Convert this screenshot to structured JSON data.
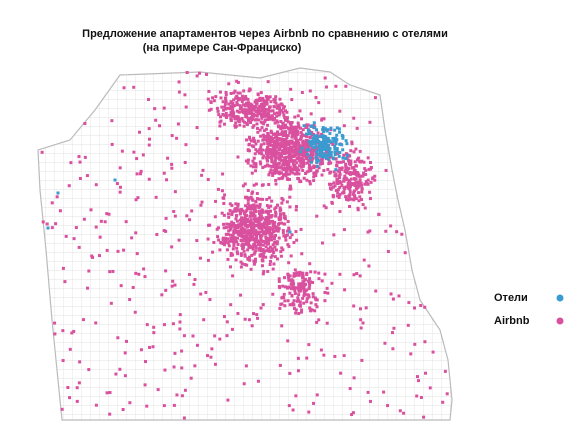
{
  "title": [
    "Предложение апартаментов через Airbnb по сравнению с отелями",
    "(на примере Сан-Франциско)"
  ],
  "legend": [
    {
      "label": "Отели",
      "color": "#3a9bd0"
    },
    {
      "label": "Airbnb",
      "color": "#d9509e"
    }
  ]
}
